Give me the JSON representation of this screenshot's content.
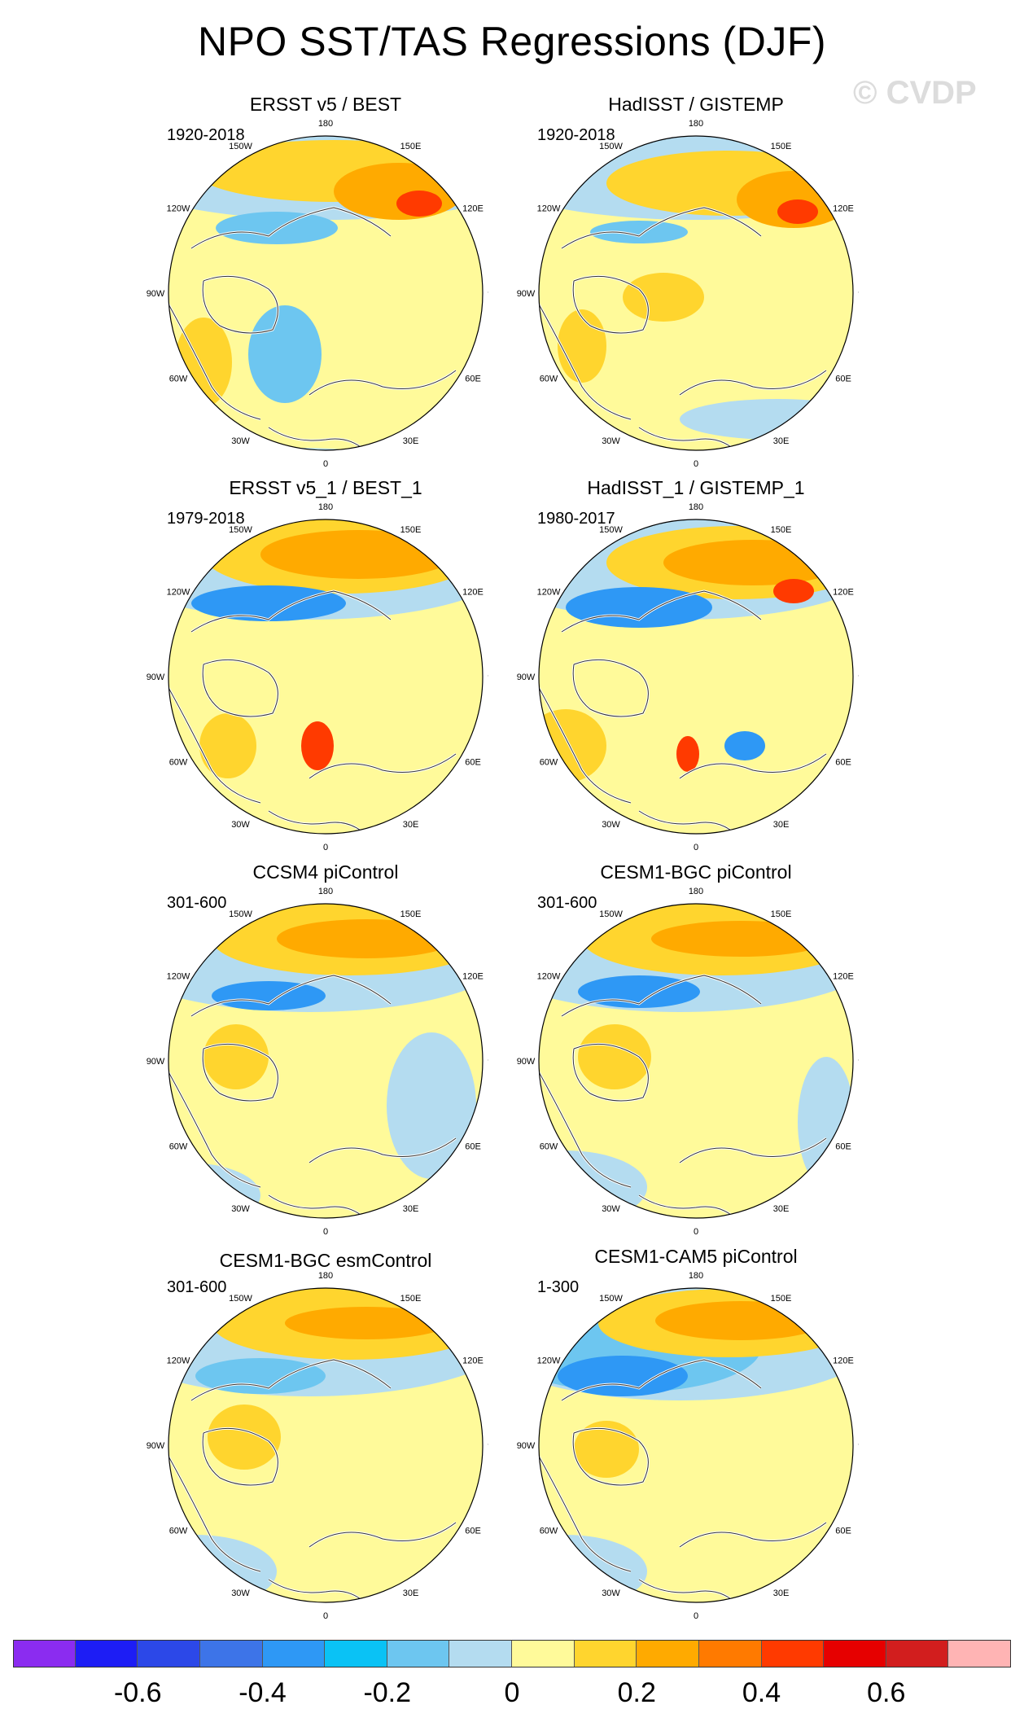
{
  "title": "NPO SST/TAS Regressions (DJF)",
  "watermark": "© CVDP",
  "longitude_labels": [
    "180",
    "150E",
    "120E",
    "90E",
    "60E",
    "30E",
    "0",
    "30W",
    "60W",
    "90W",
    "120W",
    "150W"
  ],
  "panels": [
    {
      "title": "ERSST v5 / BEST",
      "years": "1920-2018"
    },
    {
      "title": "HadISST / GISTEMP",
      "years": "1920-2018"
    },
    {
      "title": "ERSST v5_1 / BEST_1",
      "years": "1979-2018"
    },
    {
      "title": "HadISST_1 / GISTEMP_1",
      "years": "1980-2017"
    },
    {
      "title": "CCSM4 piControl",
      "years": "301-600"
    },
    {
      "title": "CESM1-BGC piControl",
      "years": "301-600"
    },
    {
      "title": "CESM1-BGC esmControl",
      "years": "301-600"
    },
    {
      "title": "CESM1-CAM5 piControl",
      "years": "1-300"
    }
  ],
  "colorbar": {
    "colors": [
      "#8b2cf0",
      "#1d1df5",
      "#2c48e8",
      "#3d74e8",
      "#2e98f5",
      "#0ac2f5",
      "#6dc6f0",
      "#b4dcf0",
      "#fffa9a",
      "#ffd52e",
      "#ffaa00",
      "#ff7a00",
      "#ff3a00",
      "#e60000",
      "#d21e1e",
      "#ffb4b4"
    ],
    "tick_labels": [
      "-0.6",
      "-0.4",
      "-0.2",
      "0",
      "0.2",
      "0.4",
      "0.6"
    ]
  },
  "palette": {
    "yellow": "#fffa9a",
    "gold": "#ffd52e",
    "orange": "#ffaa00",
    "dark_orange": "#ff7a00",
    "red": "#ff3a00",
    "light_blue": "#b4dcf0",
    "mid_blue": "#6dc6f0",
    "blue": "#2e98f5",
    "deep_blue": "#3d74e8"
  }
}
